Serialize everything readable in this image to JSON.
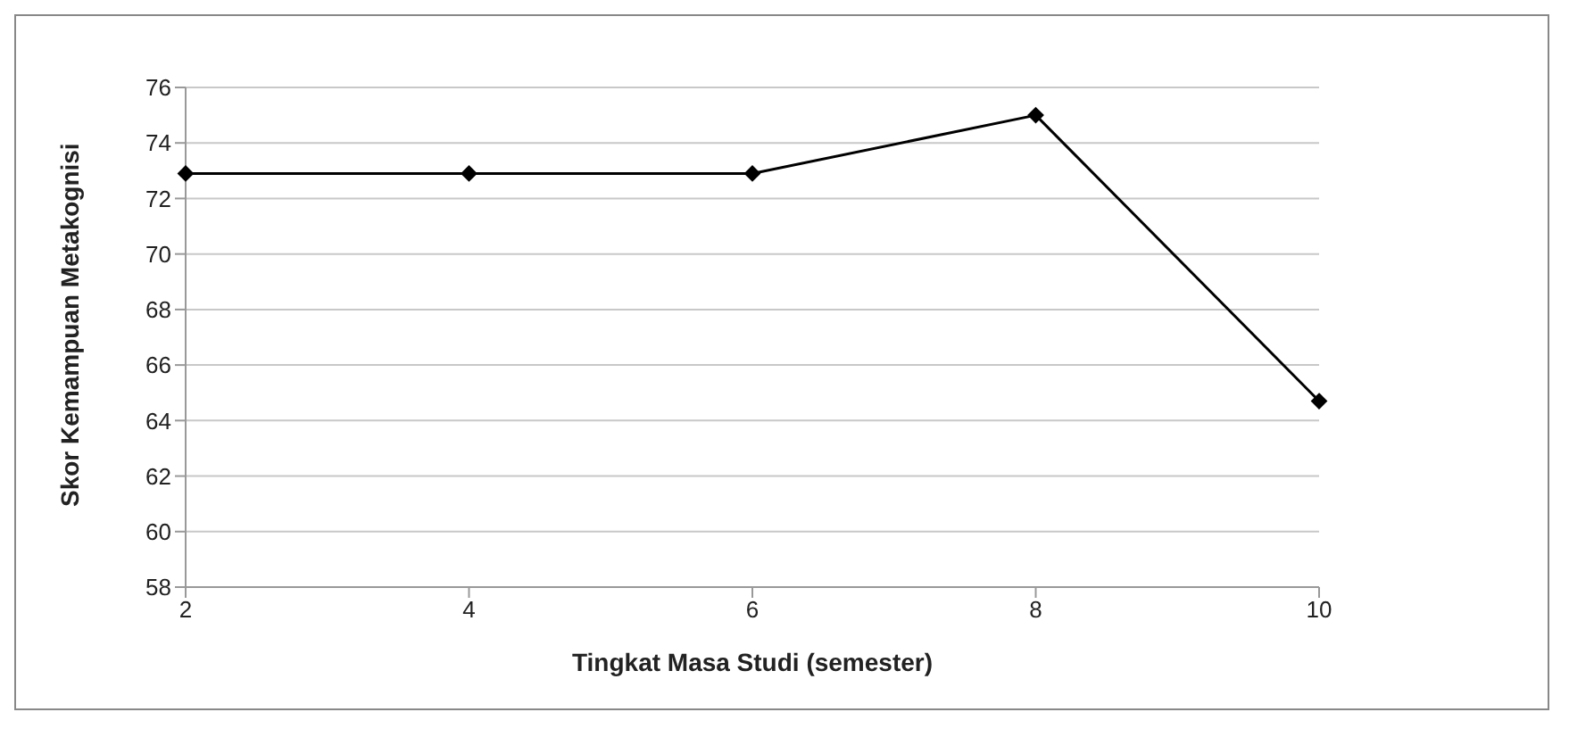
{
  "chart_data": {
    "type": "line",
    "xlabel": "Tingkat Masa Studi (semester)",
    "ylabel": "Skor Kemampuan Metakognisi",
    "categories": [
      "2",
      "4",
      "6",
      "8",
      "10"
    ],
    "series": [
      {
        "color": "#000000",
        "values": [
          72.9,
          72.9,
          72.9,
          75,
          64.7
        ]
      }
    ],
    "ylim": [
      58,
      76
    ],
    "yticks": [
      58,
      60,
      62,
      64,
      66,
      68,
      70,
      72,
      74,
      76
    ],
    "grid": "y",
    "marker": "diamond",
    "line_style": "solid",
    "legend": false
  }
}
